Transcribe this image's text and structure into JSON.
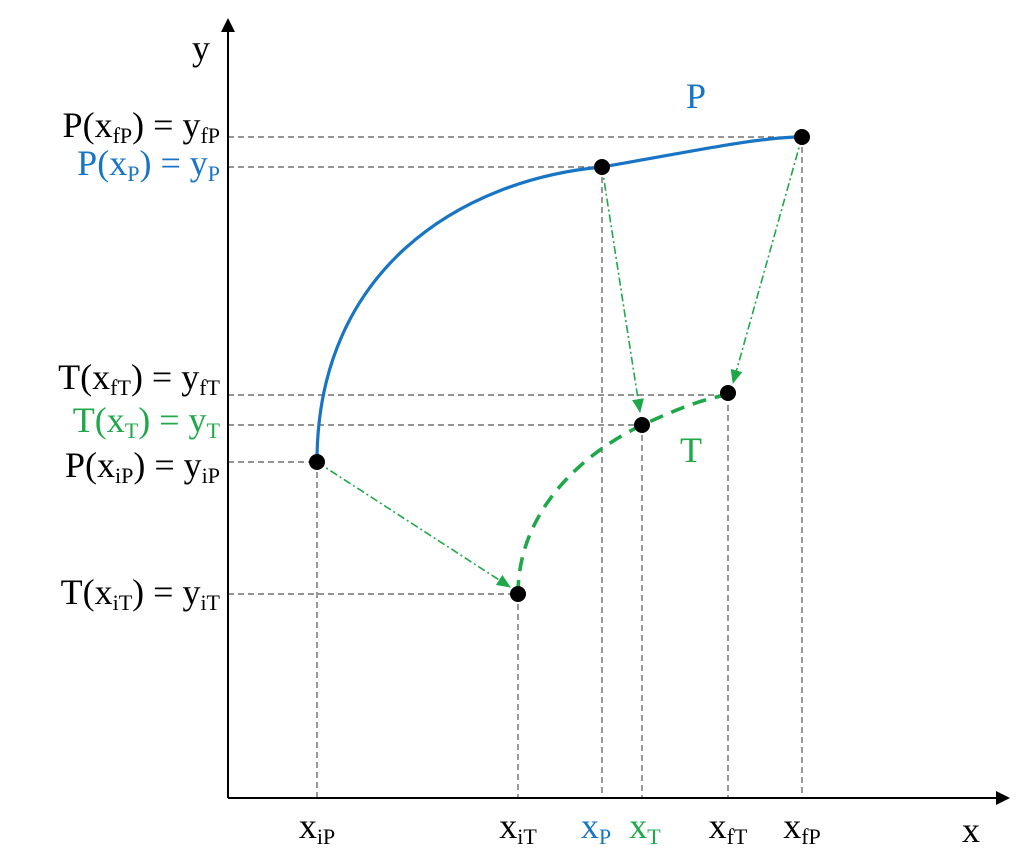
{
  "colors": {
    "axis": "#000000",
    "guide": "#555555",
    "curve_p": "#1874c4",
    "curve_t": "#1fa84a",
    "point": "#000000"
  },
  "axes": {
    "x_label": "x",
    "y_label": "y"
  },
  "curves": {
    "p": {
      "label": "P",
      "style": "solid"
    },
    "t": {
      "label": "T",
      "style": "dashed"
    }
  },
  "y_labels": [
    {
      "id": "yfP",
      "color": "black",
      "fn": "P",
      "arg": "x",
      "arg_sub": "fP",
      "rhs": "y",
      "rhs_sub": "fP"
    },
    {
      "id": "yP",
      "color": "blue",
      "fn": "P",
      "arg": "x",
      "arg_sub": "P",
      "rhs": "y",
      "rhs_sub": "P"
    },
    {
      "id": "yfT",
      "color": "black",
      "fn": "T",
      "arg": "x",
      "arg_sub": "fT",
      "rhs": "y",
      "rhs_sub": "fT"
    },
    {
      "id": "yT",
      "color": "green",
      "fn": "T",
      "arg": "x",
      "arg_sub": "T",
      "rhs": "y",
      "rhs_sub": "T"
    },
    {
      "id": "yiP",
      "color": "black",
      "fn": "P",
      "arg": "x",
      "arg_sub": "iP",
      "rhs": "y",
      "rhs_sub": "iP"
    },
    {
      "id": "yiT",
      "color": "black",
      "fn": "T",
      "arg": "x",
      "arg_sub": "iT",
      "rhs": "y",
      "rhs_sub": "iT"
    }
  ],
  "x_labels": [
    {
      "id": "xiP",
      "color": "black",
      "main": "x",
      "sub": "iP"
    },
    {
      "id": "xiT",
      "color": "black",
      "main": "x",
      "sub": "iT"
    },
    {
      "id": "xP",
      "color": "blue",
      "main": "x",
      "sub": "P"
    },
    {
      "id": "xT",
      "color": "green",
      "main": "x",
      "sub": "T"
    },
    {
      "id": "xfT",
      "color": "black",
      "main": "x",
      "sub": "fT"
    },
    {
      "id": "xfP",
      "color": "black",
      "main": "x",
      "sub": "fP"
    }
  ]
}
